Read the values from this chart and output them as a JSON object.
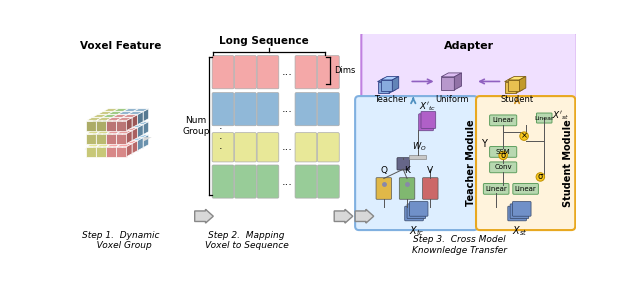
{
  "bg_color": "#ffffff",
  "seq_colors": {
    "pink": "#f4a8a8",
    "blue": "#90b8d8",
    "yellow": "#e8e898",
    "green": "#98cc98"
  },
  "vox_fc": {
    "y": "#c8c878",
    "g": "#98c878",
    "b": "#88b0cc",
    "r": "#d88888"
  },
  "teacher_box_fc": "#ddeeff",
  "teacher_box_ec": "#80b0e0",
  "student_box_fc": "#fff3dc",
  "student_box_ec": "#e8a820",
  "adapter_box_fc": "#f0e0ff",
  "adapter_box_ec": "#c080e0",
  "green_box_fc": "#b8d8b0",
  "green_box_ec": "#60a060",
  "yellow_circle_fc": "#f8c820",
  "yellow_circle_ec": "#c09000",
  "teacher_cube_fc": "#88aadd",
  "teacher_cube_ec": "#334488",
  "uniform_cube_fc": "#b898cc",
  "uniform_cube_ec": "#604878",
  "student_cube_fc": "#e8c050",
  "student_cube_ec": "#806018",
  "qkv_colors": [
    "#e0b848",
    "#80b870",
    "#cc6868"
  ],
  "xtc_fc": "#7090c8",
  "purple_fc": "#b060c8",
  "text": {
    "voxel_feature": "Voxel Feature",
    "long_sequence": "Long Sequence",
    "num_group": "Num\nGroup",
    "dims": "Dims",
    "adapter": "Adapter",
    "teacher_lbl": "Teacher",
    "uniform_lbl": "Uniform",
    "student_lbl": "Student",
    "teacher_module": "Teacher Module",
    "student_module": "Student Module",
    "step1": "Step 1.  Dynamic\n   Voxel Group",
    "step2": "Step 2.  Mapping\nVoxel to Sequence",
    "step3": "Step 3.  Cross Model\nKnownledge Transfer"
  }
}
